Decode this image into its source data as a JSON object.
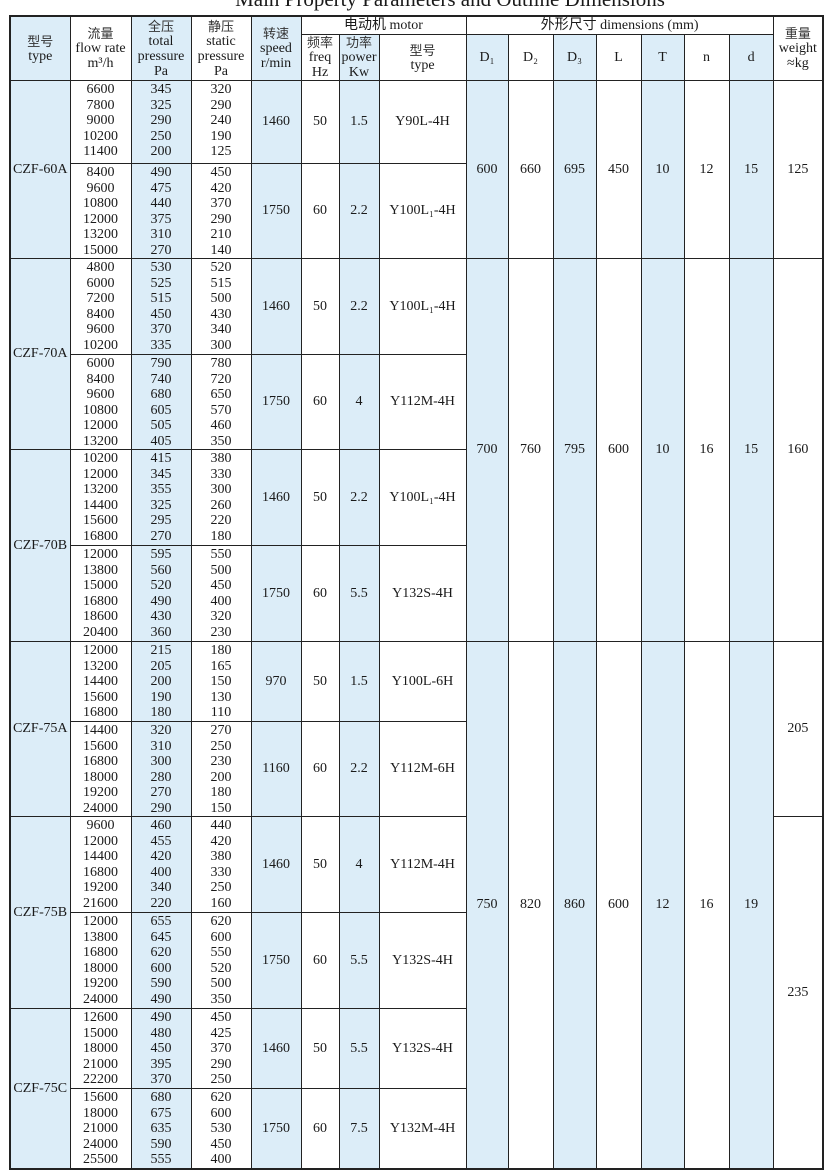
{
  "title": "Main Property Parameters and Outline Dimensions",
  "header": {
    "type": [
      "型号",
      "type"
    ],
    "flow": [
      "流量",
      "flow rate",
      "m³/h"
    ],
    "total": [
      "全压",
      "total",
      "pressure",
      "Pa"
    ],
    "static": [
      "静压",
      "static",
      "pressure",
      "Pa"
    ],
    "speed": [
      "转速",
      "speed",
      "r/min"
    ],
    "motor": "电动机  motor",
    "freq": [
      "频率",
      "freq",
      "Hz"
    ],
    "power": [
      "功率",
      "power",
      "Kw"
    ],
    "motor_type": [
      "型号",
      "type"
    ],
    "dimensions": "外形尺寸     dimensions (mm)",
    "dim_cols": [
      "D₁",
      "D₂",
      "D₃",
      "L",
      "T",
      "n",
      "d"
    ],
    "weight": [
      "重量",
      "weight",
      "≈kg"
    ]
  },
  "groups": [
    {
      "type": "CZF-60A",
      "subs": [
        {
          "flow": [
            "6600",
            "7800",
            "9000",
            "10200",
            "11400"
          ],
          "total": [
            "345",
            "325",
            "290",
            "250",
            "200"
          ],
          "static": [
            "320",
            "290",
            "240",
            "190",
            "125"
          ],
          "speed": "1460",
          "freq": "50",
          "power": "1.5",
          "motor": "Y90L-4H"
        },
        {
          "flow": [
            "8400",
            "9600",
            "10800",
            "12000",
            "13200",
            "15000"
          ],
          "total": [
            "490",
            "475",
            "440",
            "375",
            "310",
            "270"
          ],
          "static": [
            "450",
            "420",
            "370",
            "290",
            "210",
            "140"
          ],
          "speed": "1750",
          "freq": "60",
          "power": "2.2",
          "motor": "Y100L₁-4H"
        }
      ]
    },
    {
      "type": "CZF-70A",
      "subs": [
        {
          "flow": [
            "4800",
            "6000",
            "7200",
            "8400",
            "9600",
            "10200"
          ],
          "total": [
            "530",
            "525",
            "515",
            "450",
            "370",
            "335"
          ],
          "static": [
            "520",
            "515",
            "500",
            "430",
            "340",
            "300"
          ],
          "speed": "1460",
          "freq": "50",
          "power": "2.2",
          "motor": "Y100L₁-4H"
        },
        {
          "flow": [
            "6000",
            "8400",
            "9600",
            "10800",
            "12000",
            "13200"
          ],
          "total": [
            "790",
            "740",
            "680",
            "605",
            "505",
            "405"
          ],
          "static": [
            "780",
            "720",
            "650",
            "570",
            "460",
            "350"
          ],
          "speed": "1750",
          "freq": "60",
          "power": "4",
          "motor": "Y112M-4H"
        }
      ]
    },
    {
      "type": "CZF-70B",
      "subs": [
        {
          "flow": [
            "10200",
            "12000",
            "13200",
            "14400",
            "15600",
            "16800"
          ],
          "total": [
            "415",
            "345",
            "355",
            "325",
            "295",
            "270"
          ],
          "static": [
            "380",
            "330",
            "300",
            "260",
            "220",
            "180"
          ],
          "speed": "1460",
          "freq": "50",
          "power": "2.2",
          "motor": "Y100L₁-4H"
        },
        {
          "flow": [
            "12000",
            "13800",
            "15000",
            "16800",
            "18600",
            "20400"
          ],
          "total": [
            "595",
            "560",
            "520",
            "490",
            "430",
            "360"
          ],
          "static": [
            "550",
            "500",
            "450",
            "400",
            "320",
            "230"
          ],
          "speed": "1750",
          "freq": "60",
          "power": "5.5",
          "motor": "Y132S-4H"
        }
      ]
    },
    {
      "type": "CZF-75A",
      "subs": [
        {
          "flow": [
            "12000",
            "13200",
            "14400",
            "15600",
            "16800"
          ],
          "total": [
            "215",
            "205",
            "200",
            "190",
            "180"
          ],
          "static": [
            "180",
            "165",
            "150",
            "130",
            "110"
          ],
          "speed": "970",
          "freq": "50",
          "power": "1.5",
          "motor": "Y100L-6H"
        },
        {
          "flow": [
            "14400",
            "15600",
            "16800",
            "18000",
            "19200",
            "24000"
          ],
          "total": [
            "320",
            "310",
            "300",
            "280",
            "270",
            "290"
          ],
          "static": [
            "270",
            "250",
            "230",
            "200",
            "180",
            "150"
          ],
          "speed": "1160",
          "freq": "60",
          "power": "2.2",
          "motor": "Y112M-6H"
        }
      ]
    },
    {
      "type": "CZF-75B",
      "subs": [
        {
          "flow": [
            "9600",
            "12000",
            "14400",
            "16800",
            "19200",
            "21600"
          ],
          "total": [
            "460",
            "455",
            "420",
            "400",
            "340",
            "220"
          ],
          "static": [
            "440",
            "420",
            "380",
            "330",
            "250",
            "160"
          ],
          "speed": "1460",
          "freq": "50",
          "power": "4",
          "motor": "Y112M-4H"
        },
        {
          "flow": [
            "12000",
            "13800",
            "16800",
            "18000",
            "19200",
            "24000"
          ],
          "total": [
            "655",
            "645",
            "620",
            "600",
            "590",
            "490"
          ],
          "static": [
            "620",
            "600",
            "550",
            "520",
            "500",
            "350"
          ],
          "speed": "1750",
          "freq": "60",
          "power": "5.5",
          "motor": "Y132S-4H"
        }
      ]
    },
    {
      "type": "CZF-75C",
      "subs": [
        {
          "flow": [
            "12600",
            "15000",
            "18000",
            "21000",
            "22200"
          ],
          "total": [
            "490",
            "480",
            "450",
            "395",
            "370"
          ],
          "static": [
            "450",
            "425",
            "370",
            "290",
            "250"
          ],
          "speed": "1460",
          "freq": "50",
          "power": "5.5",
          "motor": "Y132S-4H"
        },
        {
          "flow": [
            "15600",
            "18000",
            "21000",
            "24000",
            "25500"
          ],
          "total": [
            "680",
            "675",
            "635",
            "590",
            "555"
          ],
          "static": [
            "620",
            "600",
            "530",
            "450",
            "400"
          ],
          "speed": "1750",
          "freq": "60",
          "power": "7.5",
          "motor": "Y132M-4H"
        }
      ]
    }
  ],
  "dimensions": [
    {
      "D1": "600",
      "D2": "660",
      "D3": "695",
      "L": "450",
      "T": "10",
      "n": "12",
      "d": "15"
    },
    {
      "D1": "700",
      "D2": "760",
      "D3": "795",
      "L": "600",
      "T": "10",
      "n": "16",
      "d": "15"
    },
    {
      "D1": "750",
      "D2": "820",
      "D3": "860",
      "L": "600",
      "T": "12",
      "n": "16",
      "d": "19"
    }
  ],
  "weights": [
    "125",
    "160",
    "205",
    "235"
  ],
  "shade_color": "#dcedf8"
}
